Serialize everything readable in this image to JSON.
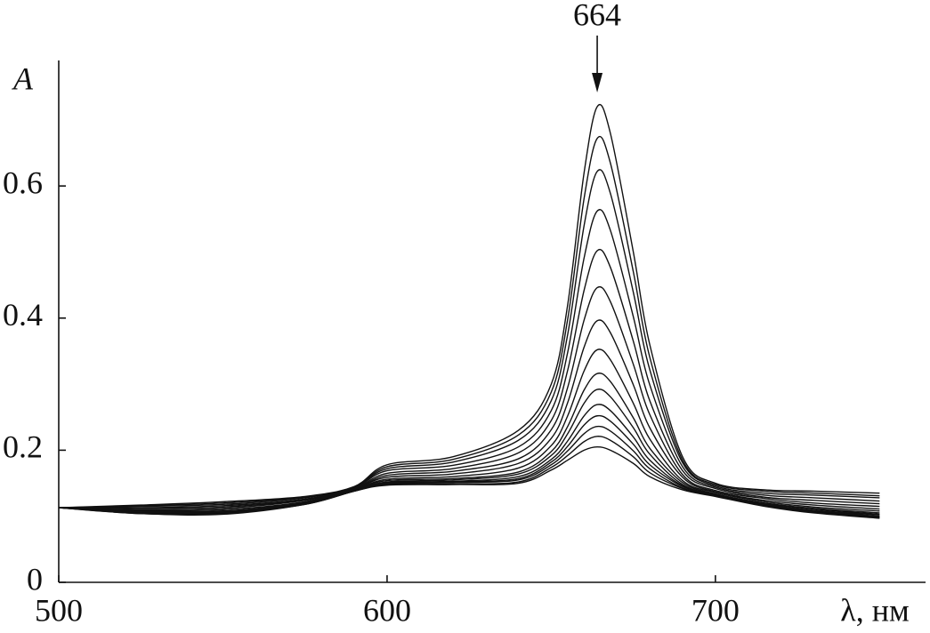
{
  "chart_data": {
    "type": "line",
    "ylabel": "A",
    "xlabel": "λ, нм",
    "annotation": {
      "label": "664",
      "x": 664
    },
    "xlim": [
      500,
      764
    ],
    "ylim": [
      0,
      0.79
    ],
    "xticks": [
      500,
      600,
      700
    ],
    "yticks": [
      0,
      0.2,
      0.4,
      0.6
    ],
    "x": [
      500,
      525,
      550,
      575,
      590,
      600,
      620,
      640,
      650,
      655,
      660,
      664,
      668,
      675,
      680,
      690,
      700,
      715,
      730,
      750
    ],
    "series": [
      {
        "color": "#111111",
        "values": [
          0.113,
          0.117,
          0.122,
          0.13,
          0.145,
          0.178,
          0.19,
          0.23,
          0.3,
          0.42,
          0.62,
          0.72,
          0.68,
          0.5,
          0.36,
          0.19,
          0.15,
          0.14,
          0.138,
          0.135
        ]
      },
      {
        "color": "#111111",
        "values": [
          0.113,
          0.116,
          0.12,
          0.129,
          0.144,
          0.175,
          0.186,
          0.223,
          0.288,
          0.398,
          0.581,
          0.672,
          0.635,
          0.47,
          0.341,
          0.185,
          0.148,
          0.138,
          0.135,
          0.131
        ]
      },
      {
        "color": "#111111",
        "values": [
          0.113,
          0.115,
          0.118,
          0.128,
          0.144,
          0.172,
          0.182,
          0.215,
          0.275,
          0.375,
          0.54,
          0.622,
          0.589,
          0.439,
          0.322,
          0.181,
          0.146,
          0.135,
          0.132,
          0.128
        ]
      },
      {
        "color": "#111111",
        "values": [
          0.113,
          0.113,
          0.116,
          0.126,
          0.143,
          0.169,
          0.177,
          0.205,
          0.26,
          0.348,
          0.491,
          0.562,
          0.533,
          0.402,
          0.299,
          0.175,
          0.144,
          0.132,
          0.128,
          0.123
        ]
      },
      {
        "color": "#111111",
        "values": [
          0.113,
          0.112,
          0.114,
          0.125,
          0.142,
          0.165,
          0.172,
          0.196,
          0.245,
          0.321,
          0.442,
          0.502,
          0.477,
          0.365,
          0.275,
          0.169,
          0.142,
          0.129,
          0.124,
          0.119
        ]
      },
      {
        "color": "#111111",
        "values": [
          0.113,
          0.11,
          0.112,
          0.124,
          0.141,
          0.162,
          0.168,
          0.187,
          0.231,
          0.295,
          0.397,
          0.446,
          0.425,
          0.33,
          0.254,
          0.163,
          0.139,
          0.127,
          0.12,
          0.115
        ]
      },
      {
        "color": "#111111",
        "values": [
          0.113,
          0.109,
          0.11,
          0.122,
          0.141,
          0.159,
          0.164,
          0.18,
          0.218,
          0.272,
          0.356,
          0.396,
          0.378,
          0.299,
          0.234,
          0.159,
          0.137,
          0.124,
          0.117,
          0.111
        ]
      },
      {
        "color": "#111111",
        "values": [
          0.113,
          0.108,
          0.108,
          0.121,
          0.14,
          0.156,
          0.16,
          0.173,
          0.207,
          0.252,
          0.32,
          0.352,
          0.337,
          0.271,
          0.217,
          0.154,
          0.136,
          0.122,
          0.114,
          0.108
        ]
      },
      {
        "color": "#111111",
        "values": [
          0.113,
          0.107,
          0.107,
          0.121,
          0.14,
          0.154,
          0.157,
          0.167,
          0.198,
          0.236,
          0.291,
          0.316,
          0.304,
          0.249,
          0.203,
          0.151,
          0.134,
          0.12,
          0.112,
          0.105
        ]
      },
      {
        "color": "#111111",
        "values": [
          0.113,
          0.106,
          0.106,
          0.12,
          0.139,
          0.152,
          0.155,
          0.164,
          0.192,
          0.225,
          0.271,
          0.292,
          0.281,
          0.234,
          0.194,
          0.148,
          0.133,
          0.119,
          0.111,
          0.103
        ]
      },
      {
        "color": "#111111",
        "values": [
          0.113,
          0.106,
          0.105,
          0.119,
          0.139,
          0.151,
          0.153,
          0.16,
          0.186,
          0.214,
          0.252,
          0.269,
          0.26,
          0.22,
          0.185,
          0.146,
          0.132,
          0.118,
          0.109,
          0.102
        ]
      },
      {
        "color": "#111111",
        "values": [
          0.113,
          0.105,
          0.105,
          0.119,
          0.139,
          0.15,
          0.152,
          0.157,
          0.182,
          0.206,
          0.238,
          0.252,
          0.244,
          0.209,
          0.178,
          0.145,
          0.132,
          0.117,
          0.108,
          0.1
        ]
      },
      {
        "color": "#111111",
        "values": [
          0.113,
          0.105,
          0.104,
          0.119,
          0.138,
          0.149,
          0.151,
          0.155,
          0.178,
          0.199,
          0.225,
          0.236,
          0.229,
          0.199,
          0.172,
          0.143,
          0.131,
          0.117,
          0.107,
          0.099
        ]
      },
      {
        "color": "#111111",
        "values": [
          0.113,
          0.104,
          0.104,
          0.118,
          0.138,
          0.148,
          0.149,
          0.152,
          0.174,
          0.192,
          0.213,
          0.221,
          0.215,
          0.19,
          0.166,
          0.142,
          0.131,
          0.116,
          0.106,
          0.098
        ]
      },
      {
        "color": "#111111",
        "values": [
          0.113,
          0.104,
          0.103,
          0.118,
          0.138,
          0.147,
          0.148,
          0.15,
          0.17,
          0.185,
          0.2,
          0.205,
          0.2,
          0.18,
          0.16,
          0.14,
          0.13,
          0.115,
          0.105,
          0.097
        ]
      }
    ]
  }
}
